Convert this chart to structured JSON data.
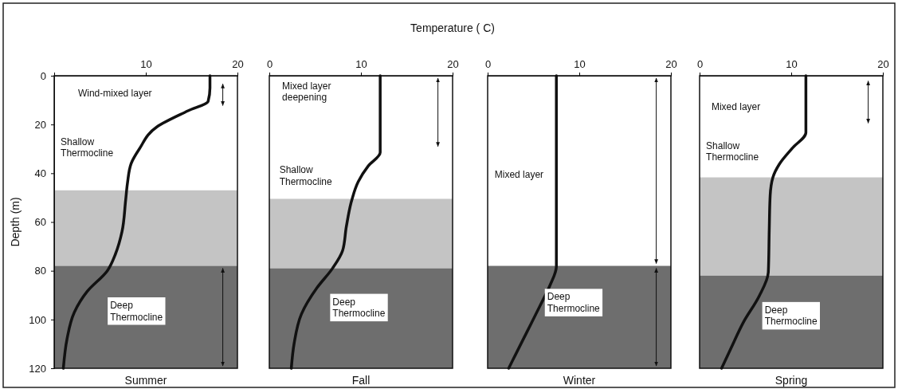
{
  "chart_data": [
    {
      "type": "line",
      "title": "Summer",
      "ylabel": "Depth (m)",
      "xlim": [
        0,
        20
      ],
      "xticks": [
        10,
        20
      ],
      "ylim": [
        120,
        0
      ],
      "yticks": [
        0,
        20,
        40,
        60,
        80,
        100,
        120
      ],
      "series": [
        {
          "color": "#111111",
          "x": [
            17.0,
            17.0,
            16.8,
            14.6,
            11.2,
            9.3,
            8.4,
            8.0,
            7.8,
            7.4,
            6.7,
            5.8,
            3.6,
            2.2,
            1.4,
            1.0
          ],
          "values": [
            0,
            5,
            10.5,
            14.4,
            21,
            30,
            36,
            44,
            51,
            64,
            73,
            80,
            88.5,
            97,
            108,
            120
          ]
        }
      ],
      "bands": [
        {
          "axis": "y",
          "from": 47,
          "to": 78,
          "color": "#c4c4c4"
        },
        {
          "axis": "y",
          "from": 78,
          "to": 120,
          "color": "#6e6e6e"
        }
      ],
      "annotations": [
        "Wind-mixed layer",
        "Shallow\nThermocline",
        "Deep\nThermocline"
      ]
    },
    {
      "type": "line",
      "title": "Fall",
      "xlabel": "Temperature ( C)",
      "xlim": [
        0,
        20
      ],
      "xticks": [
        0,
        10,
        20
      ],
      "ylim": [
        120,
        0
      ],
      "tick_labels": "x",
      "series": [
        {
          "color": "#111111",
          "x": [
            12.1,
            12.1,
            10.8,
            9.7,
            9.0,
            8.4,
            8.0,
            6.9,
            5.2,
            3.5,
            2.7,
            2.4
          ],
          "values": [
            0,
            31.5,
            37,
            43.5,
            51,
            62,
            71.7,
            79,
            87,
            97.8,
            110,
            120
          ]
        }
      ],
      "bands": [
        {
          "axis": "y",
          "from": 50.5,
          "to": 79,
          "color": "#c4c4c4"
        },
        {
          "axis": "y",
          "from": 79,
          "to": 120,
          "color": "#6e6e6e"
        }
      ],
      "annotations": [
        "Mixed layer\ndeepening",
        "Shallow\nThermocline",
        "Deep\nThermocline"
      ]
    },
    {
      "type": "line",
      "title": "Winter",
      "xlim": [
        0,
        20
      ],
      "xticks": [
        0,
        10,
        20
      ],
      "ylim": [
        120,
        0
      ],
      "tick_labels": "x",
      "series": [
        {
          "color": "#111111",
          "x": [
            7.5,
            7.5,
            6.8,
            5.7,
            4.3,
            3.1,
            2.3
          ],
          "values": [
            0,
            78.2,
            86,
            94.5,
            105,
            114,
            120
          ]
        }
      ],
      "bands": [
        {
          "axis": "y",
          "from": 78,
          "to": 120,
          "color": "#6e6e6e"
        }
      ],
      "annotations": [
        "Mixed layer",
        "Deep\nThermocline"
      ]
    },
    {
      "type": "line",
      "title": "Spring",
      "xlim": [
        0,
        20
      ],
      "xticks": [
        0,
        10,
        20
      ],
      "ylim": [
        120,
        0
      ],
      "tick_labels": "x",
      "series": [
        {
          "color": "#111111",
          "x": [
            11.6,
            11.6,
            10.1,
            8.7,
            8.0,
            7.7,
            7.6,
            7.5,
            6.5,
            4.8,
            3.4,
            2.4
          ],
          "values": [
            0,
            23.3,
            29.8,
            36.3,
            41.7,
            49.2,
            63.3,
            80.6,
            90.4,
            101,
            112,
            120
          ]
        }
      ],
      "bands": [
        {
          "axis": "y",
          "from": 41.7,
          "to": 82,
          "color": "#c4c4c4"
        },
        {
          "axis": "y",
          "from": 82,
          "to": 120,
          "color": "#6e6e6e"
        }
      ],
      "annotations": [
        "Mixed layer",
        "Shallow\nThermocline",
        "Deep\nThermocline"
      ]
    }
  ]
}
